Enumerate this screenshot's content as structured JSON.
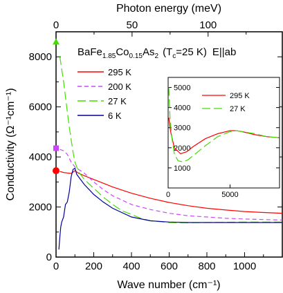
{
  "chart_data": {
    "type": "line",
    "title_parts": {
      "compound_prefix": "BaFe",
      "fe_sub": "1.85",
      "co": "Co",
      "co_sub": "0.15",
      "as": "As",
      "as_sub": "2",
      "tc_open": "(T",
      "tc_sub": "c",
      "tc_value": "=25 K)",
      "polarization": "E||ab"
    },
    "xlabel": "Wave number (cm⁻¹)",
    "xlabel_top": "Photon energy (meV)",
    "ylabel": "Conductivity (Ω⁻¹cm⁻¹)",
    "xlim": [
      0,
      1200
    ],
    "ylim": [
      0,
      9000
    ],
    "top_xlim": [
      0,
      148.8
    ],
    "xticks": [
      "0",
      "200",
      "400",
      "600",
      "800",
      "1000"
    ],
    "xtick_values": [
      0,
      200,
      400,
      600,
      800,
      1000
    ],
    "yticks": [
      "0",
      "2000",
      "4000",
      "6000",
      "8000"
    ],
    "ytick_values": [
      0,
      2000,
      4000,
      6000,
      8000
    ],
    "top_xticks": [
      "0",
      "50",
      "100"
    ],
    "top_xtick_values": [
      0,
      50,
      100
    ],
    "legend_position": "upper-right",
    "series": [
      {
        "name": "295 K",
        "color": "#ff0000",
        "dash": "solid",
        "x": [
          20,
          40,
          60,
          80,
          100,
          120,
          150,
          200,
          250,
          300,
          400,
          500,
          600,
          700,
          800,
          900,
          1000,
          1100,
          1200
        ],
        "y": [
          3420,
          3380,
          3360,
          3340,
          3450,
          3350,
          3250,
          3100,
          2950,
          2800,
          2550,
          2350,
          2180,
          2050,
          1950,
          1880,
          1820,
          1780,
          1750
        ],
        "dc_marker": {
          "x": 0,
          "y": 3450,
          "shape": "circle"
        }
      },
      {
        "name": "200 K",
        "color": "#cc44ff",
        "dash": "dashed",
        "x": [
          20,
          40,
          60,
          80,
          100,
          150,
          200,
          250,
          300,
          400,
          500,
          600,
          700,
          800,
          900,
          1000,
          1100,
          1200
        ],
        "y": [
          4300,
          4250,
          4100,
          3800,
          3600,
          3350,
          3000,
          2700,
          2450,
          2100,
          1900,
          1750,
          1650,
          1600,
          1550,
          1520,
          1500,
          1480
        ],
        "dc_marker": {
          "x": 0,
          "y": 4350,
          "shape": "square"
        }
      },
      {
        "name": "27 K",
        "color": "#44dd00",
        "dash": "long-dash",
        "x": [
          20,
          30,
          40,
          50,
          60,
          70,
          80,
          90,
          100,
          120,
          150,
          200,
          250,
          300,
          350,
          400,
          450,
          500,
          600,
          700,
          800,
          1000,
          1200
        ],
        "y": [
          8000,
          7500,
          7000,
          6400,
          5800,
          5200,
          4700,
          4200,
          3800,
          3400,
          3100,
          2750,
          2400,
          2100,
          1850,
          1700,
          1550,
          1450,
          1380,
          1370,
          1380,
          1400,
          1400
        ],
        "dc_marker": {
          "x": 0,
          "y": 8600,
          "shape": "triangle"
        }
      },
      {
        "name": "6 K",
        "color": "#000099",
        "dash": "solid",
        "x": [
          15,
          20,
          25,
          30,
          40,
          50,
          60,
          70,
          80,
          90,
          100,
          110,
          120,
          150,
          200,
          250,
          300,
          400,
          500,
          600,
          700,
          800,
          1000,
          1200
        ],
        "y": [
          300,
          800,
          1200,
          1400,
          1600,
          2100,
          2200,
          2600,
          3200,
          3500,
          3550,
          3300,
          3200,
          2900,
          2500,
          2200,
          1950,
          1600,
          1450,
          1400,
          1380,
          1380,
          1380,
          1380
        ]
      }
    ],
    "inset": {
      "xlim": [
        0,
        9000
      ],
      "ylim": [
        0,
        5500
      ],
      "xticks": [
        "0",
        "5000"
      ],
      "xtick_values": [
        0,
        5000
      ],
      "yticks": [
        "0",
        "1000",
        "2000",
        "3000",
        "4000",
        "5000"
      ],
      "ytick_values": [
        0,
        1000,
        2000,
        3000,
        4000,
        5000
      ],
      "series": [
        {
          "name": "295 K",
          "color": "#ff0000",
          "dash": "solid",
          "x": [
            50,
            200,
            500,
            1000,
            1500,
            2000,
            3000,
            4000,
            5000,
            5500,
            6000,
            7000,
            8000,
            9000
          ],
          "y": [
            3500,
            2800,
            2000,
            1700,
            1800,
            2050,
            2450,
            2700,
            2850,
            2850,
            2800,
            2650,
            2550,
            2500
          ]
        },
        {
          "name": "27 K",
          "color": "#44dd00",
          "dash": "long-dash",
          "x": [
            50,
            150,
            300,
            500,
            800,
            1200,
            1600,
            2000,
            3000,
            4000,
            5000,
            5500,
            6000,
            7000,
            8000,
            9000
          ],
          "y": [
            5000,
            3500,
            2500,
            1700,
            1350,
            1300,
            1400,
            1600,
            2100,
            2550,
            2800,
            2850,
            2800,
            2700,
            2550,
            2500
          ]
        }
      ]
    }
  }
}
